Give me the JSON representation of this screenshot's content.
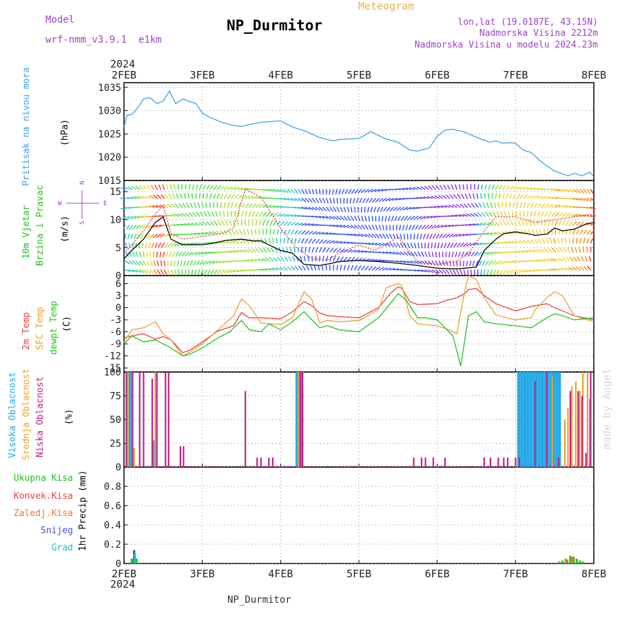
{
  "header": {
    "model_label": "Model",
    "model_name": "wrf-nmm_v3.9.1  e1km",
    "meteogram_label": "Meteogram",
    "station": "NP_Durmitor",
    "lonlat": "lon,lat (19.0187E, 43.15N)",
    "altitude": "Nadmorska Visina 2212m",
    "model_altitude": "Nadmorska Visina u modelu 2024.23m",
    "footer_station": "NP_Durmitor",
    "credit": "made by Angel"
  },
  "colors": {
    "pressure": "#3aa0e6",
    "wind_speed": "#000000",
    "gust": "#e03030",
    "t2m": "#e84040",
    "tsfc": "#e8a030",
    "dewpoint": "#22c022",
    "high_cloud": "#1fa8e6",
    "mid_cloud": "#e8a030",
    "low_cloud": "#c0208a",
    "total_precip": "#22c022",
    "conv_precip": "#e84040",
    "freezing_precip": "#f07820",
    "snow": "#4848e0",
    "graupel": "#20c0c0",
    "purple_text": "#a040c8"
  },
  "chart_data": {
    "type": "meteogram",
    "x_axis": {
      "start_label": "2FEB",
      "year_label": "2024",
      "ticks": [
        "2FEB",
        "3FEB",
        "4FEB",
        "5FEB",
        "6FEB",
        "7FEB",
        "8FEB"
      ],
      "range_days": [
        0,
        6
      ]
    },
    "panels": [
      {
        "id": "pressure",
        "title": "Pritisak na nivou mora",
        "unit": "(hPa)",
        "ylim": [
          1015,
          1036
        ],
        "yticks": [
          1015,
          1020,
          1025,
          1030,
          1035
        ],
        "series": [
          {
            "key": "pressure",
            "x": [
              0.0,
              0.04,
              0.1,
              0.17,
              0.25,
              0.33,
              0.42,
              0.5,
              0.58,
              0.66,
              0.75,
              0.83,
              0.92,
              1.0,
              1.1,
              1.25,
              1.4,
              1.5,
              1.6,
              1.75,
              2.0,
              2.15,
              2.33,
              2.5,
              2.67,
              2.75,
              3.0,
              3.15,
              3.33,
              3.5,
              3.65,
              3.75,
              3.9,
              4.0,
              4.1,
              4.2,
              4.33,
              4.5,
              4.67,
              4.75,
              4.83,
              4.92,
              5.0,
              5.1,
              5.2,
              5.33,
              5.5,
              5.67,
              5.75,
              5.85,
              5.95,
              6.0
            ],
            "y": [
              1026.5,
              1029.0,
              1029.2,
              1030.5,
              1032.5,
              1032.8,
              1031.5,
              1032.0,
              1034.2,
              1031.5,
              1032.5,
              1032.0,
              1031.5,
              1029.5,
              1028.5,
              1027.5,
              1026.8,
              1026.6,
              1027.0,
              1027.5,
              1027.8,
              1026.5,
              1025.5,
              1024.2,
              1023.5,
              1023.8,
              1024.0,
              1025.5,
              1024.0,
              1023.2,
              1021.5,
              1021.3,
              1022.0,
              1024.5,
              1025.8,
              1026.0,
              1025.5,
              1024.3,
              1023.2,
              1023.5,
              1023.0,
              1023.1,
              1023.0,
              1021.5,
              1021.0,
              1019.0,
              1017.0,
              1016.0,
              1016.5,
              1016.0,
              1016.8,
              1015.8
            ]
          }
        ]
      },
      {
        "id": "wind",
        "title_line1": "10m Vjetar",
        "title_line2": "Brzina i Pravac",
        "unit": "(m/s)",
        "ylim": [
          0,
          17
        ],
        "yticks": [
          0,
          5,
          10,
          15
        ],
        "compass_labels": [
          "N",
          "S",
          "E",
          "W"
        ],
        "series": [
          {
            "key": "wind_speed",
            "x": [
              0.0,
              0.1,
              0.25,
              0.4,
              0.5,
              0.6,
              0.75,
              1.0,
              1.15,
              1.3,
              1.5,
              1.65,
              1.75,
              1.85,
              2.0,
              2.15,
              2.3,
              2.5,
              2.65,
              2.75,
              3.0,
              3.25,
              3.5,
              3.75,
              4.0,
              4.25,
              4.5,
              4.6,
              4.75,
              4.85,
              5.0,
              5.15,
              5.25,
              5.4,
              5.5,
              5.6,
              5.75,
              5.9,
              6.0
            ],
            "y": [
              3.0,
              4.5,
              6.5,
              9.5,
              10.5,
              6.5,
              5.5,
              5.5,
              5.8,
              6.3,
              6.5,
              6.2,
              6.2,
              5.5,
              4.5,
              4.0,
              2.0,
              1.8,
              2.2,
              2.5,
              2.7,
              2.5,
              2.2,
              1.8,
              1.3,
              1.2,
              1.5,
              4.5,
              6.5,
              7.5,
              7.8,
              7.5,
              7.2,
              7.4,
              8.5,
              8.0,
              8.3,
              9.2,
              9.5
            ]
          },
          {
            "key": "gust",
            "x": [
              0.0,
              0.1,
              0.25,
              0.4,
              0.5,
              0.6,
              0.75,
              1.0,
              1.25,
              1.4,
              1.55,
              1.75,
              2.0,
              2.2,
              2.4,
              2.6,
              2.75,
              3.0,
              3.2,
              3.4,
              3.5,
              3.6,
              3.75,
              4.0,
              4.25,
              4.4,
              4.6,
              4.75,
              5.0,
              5.25,
              5.5,
              5.75,
              6.0
            ],
            "y": [
              4.0,
              5.5,
              8.0,
              11.0,
              12.5,
              7.5,
              6.5,
              7.0,
              7.5,
              8.5,
              15.5,
              14.0,
              8.5,
              5.0,
              3.0,
              2.8,
              4.0,
              5.5,
              4.5,
              6.0,
              7.0,
              5.0,
              2.5,
              2.0,
              2.5,
              4.0,
              8.0,
              10.5,
              10.5,
              9.5,
              10.0,
              10.5,
              11.0
            ]
          }
        ]
      },
      {
        "id": "temperature",
        "title_line1": "2m Temp",
        "title_line2": "SFC Temp",
        "title_line3": "dewpt Temp",
        "unit": "(C)",
        "ylim": [
          -16,
          8
        ],
        "yticks": [
          -15,
          -12,
          -9,
          -6,
          -3,
          0,
          3,
          6
        ],
        "series": [
          {
            "key": "t2m",
            "x": [
              0.0,
              0.1,
              0.25,
              0.4,
              0.5,
              0.6,
              0.75,
              0.85,
              1.0,
              1.2,
              1.4,
              1.5,
              1.6,
              1.75,
              2.0,
              2.15,
              2.3,
              2.4,
              2.5,
              2.6,
              2.75,
              3.0,
              3.25,
              3.4,
              3.5,
              3.55,
              3.65,
              3.75,
              4.0,
              4.15,
              4.25,
              4.35,
              4.4,
              4.5,
              4.6,
              4.75,
              5.0,
              5.2,
              5.25,
              5.4,
              5.5,
              5.6,
              5.75,
              6.0
            ],
            "y": [
              -7.5,
              -7.0,
              -6.5,
              -7.8,
              -7.2,
              -8.0,
              -11.2,
              -10.5,
              -8.5,
              -5.8,
              -4.5,
              -1.2,
              -2.5,
              -2.5,
              -2.8,
              -1.0,
              1.5,
              0.5,
              -1.3,
              -2.0,
              -2.2,
              -2.5,
              0.0,
              3.5,
              5.2,
              4.8,
              1.5,
              0.8,
              1.0,
              2.0,
              2.5,
              3.5,
              4.5,
              4.8,
              3.0,
              1.0,
              -0.8,
              0.3,
              0.5,
              1.0,
              0.0,
              -0.8,
              -2.0,
              -3.0
            ]
          },
          {
            "key": "tsfc",
            "x": [
              0.0,
              0.1,
              0.25,
              0.4,
              0.5,
              0.6,
              0.75,
              0.85,
              1.0,
              1.2,
              1.4,
              1.5,
              1.6,
              1.75,
              2.0,
              2.15,
              2.3,
              2.4,
              2.5,
              2.6,
              2.75,
              3.0,
              3.25,
              3.35,
              3.5,
              3.55,
              3.65,
              3.75,
              4.0,
              4.15,
              4.25,
              4.35,
              4.4,
              4.5,
              4.6,
              4.75,
              5.0,
              5.2,
              5.25,
              5.4,
              5.5,
              5.6,
              5.75,
              6.0
            ],
            "y": [
              -8.5,
              -5.5,
              -5.0,
              -3.5,
              -6.5,
              -8.0,
              -12.0,
              -11.0,
              -9.0,
              -5.5,
              -2.0,
              2.2,
              0.5,
              -3.8,
              -4.2,
              -2.5,
              4.0,
              2.0,
              -3.8,
              -3.2,
              -3.5,
              -3.2,
              -0.5,
              5.0,
              6.0,
              5.5,
              -2.0,
              -4.0,
              -4.5,
              -5.5,
              -6.5,
              4.0,
              8.0,
              7.0,
              2.5,
              -1.8,
              -3.0,
              -2.5,
              -0.5,
              2.5,
              4.0,
              3.0,
              -2.0,
              -3.5
            ]
          },
          {
            "key": "dewpoint",
            "x": [
              0.0,
              0.1,
              0.25,
              0.4,
              0.5,
              0.6,
              0.75,
              0.85,
              1.0,
              1.2,
              1.35,
              1.5,
              1.6,
              1.75,
              1.85,
              2.0,
              2.15,
              2.3,
              2.4,
              2.5,
              2.6,
              2.75,
              3.0,
              3.25,
              3.4,
              3.5,
              3.6,
              3.75,
              3.85,
              4.0,
              4.1,
              4.2,
              4.3,
              4.4,
              4.5,
              4.6,
              4.75,
              5.0,
              5.2,
              5.4,
              5.5,
              5.6,
              5.75,
              6.0
            ],
            "y": [
              -9.0,
              -7.0,
              -8.5,
              -8.0,
              -9.0,
              -10.0,
              -12.0,
              -11.5,
              -10.0,
              -7.5,
              -6.0,
              -3.2,
              -5.5,
              -6.0,
              -4.0,
              -5.5,
              -3.5,
              -1.0,
              -3.0,
              -5.0,
              -4.5,
              -5.5,
              -6.0,
              -2.5,
              1.0,
              3.5,
              2.0,
              -2.5,
              -2.5,
              -3.0,
              -5.0,
              -7.0,
              -14.5,
              -2.0,
              -1.0,
              -3.5,
              -4.0,
              -4.5,
              -5.0,
              -2.5,
              -1.5,
              -2.0,
              -3.0,
              -2.5
            ]
          }
        ]
      },
      {
        "id": "cloud",
        "title_line1": "Visoka Oblacnost",
        "title_line2": "Srednja Oblacnost",
        "title_line3": "Niska Oblacnost",
        "unit": "(%)",
        "ylim": [
          0,
          100
        ],
        "yticks": [
          0,
          25,
          50,
          75,
          100
        ],
        "bars": [
          {
            "key": "high_cloud",
            "x": [
              0.07,
              0.09,
              0.38,
              2.2,
              2.22,
              2.24,
              2.26,
              2.28,
              5.03,
              5.05,
              5.07,
              5.09,
              5.11,
              5.13,
              5.15,
              5.17,
              5.19,
              5.21,
              5.23,
              5.25,
              5.27,
              5.29,
              5.31,
              5.33,
              5.35,
              5.37,
              5.39,
              5.41,
              5.43,
              5.45,
              5.47,
              5.49,
              5.51,
              5.53,
              5.55,
              5.57,
              5.95
            ],
            "values": [
              100,
              100,
              28,
              100,
              100,
              100,
              100,
              100,
              100,
              100,
              100,
              100,
              100,
              100,
              100,
              100,
              100,
              100,
              100,
              100,
              100,
              100,
              100,
              100,
              100,
              100,
              100,
              100,
              100,
              100,
              100,
              100,
              100,
              100,
              100,
              100,
              72
            ]
          },
          {
            "key": "mid_cloud",
            "x": [
              0.05,
              0.13,
              0.4,
              2.23,
              5.47,
              5.63,
              5.67,
              5.72,
              5.77,
              5.82,
              5.86,
              5.92
            ],
            "values": [
              100,
              20,
              100,
              100,
              95,
              50,
              62,
              85,
              90,
              80,
              100,
              100
            ]
          },
          {
            "key": "low_cloud",
            "x": [
              0.03,
              0.11,
              0.2,
              0.25,
              0.36,
              0.42,
              0.53,
              0.57,
              0.72,
              0.76,
              1.55,
              1.7,
              1.75,
              1.85,
              1.9,
              2.25,
              2.28,
              3.7,
              3.8,
              3.85,
              3.95,
              4.1,
              4.6,
              4.68,
              4.78,
              4.85,
              4.9,
              5.0,
              5.05,
              5.25,
              5.4,
              5.55,
              5.7,
              5.8,
              5.85,
              5.9,
              5.96
            ],
            "values": [
              100,
              100,
              100,
              100,
              93,
              100,
              100,
              100,
              22,
              22,
              80,
              10,
              10,
              10,
              10,
              100,
              100,
              10,
              10,
              10,
              10,
              10,
              10,
              10,
              10,
              10,
              10,
              10,
              10,
              90,
              100,
              10,
              80,
              80,
              75,
              15,
              100
            ]
          }
        ]
      },
      {
        "id": "precip",
        "title_line1": "Ukupna Kisa",
        "title_line2": "Konvek.Kisa",
        "title_line3": "Zaledj.Kisa",
        "title_line4": "Snijeg",
        "title_line5": "Grad",
        "unit": "1hr Precip (mm)",
        "ylim": [
          0,
          1.0
        ],
        "yticks": [
          0,
          0.2,
          0.4,
          0.6,
          0.8
        ],
        "bars": [
          {
            "key": "total_precip",
            "x": [
              0.1,
              0.16,
              5.56,
              5.6,
              5.66,
              5.7,
              5.74,
              5.78,
              5.82,
              5.86
            ],
            "values": [
              0.05,
              0.05,
              0.02,
              0.03,
              0.04,
              0.08,
              0.07,
              0.05,
              0.03,
              0.02
            ]
          },
          {
            "key": "snow",
            "x": [
              0.13
            ],
            "values": [
              0.14
            ]
          },
          {
            "key": "graupel",
            "x": [
              0.14
            ],
            "values": [
              0.1
            ]
          },
          {
            "key": "freezing_precip",
            "x": [
              5.64,
              5.72
            ],
            "values": [
              0.05,
              0.07
            ]
          }
        ]
      }
    ]
  }
}
